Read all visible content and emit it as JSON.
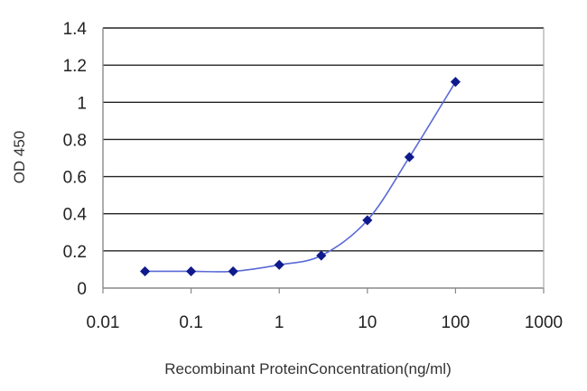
{
  "chart_data": {
    "type": "line",
    "title": "",
    "xlabel": "Recombinant ProteinConcentration(ng/ml)",
    "ylabel": "OD 450",
    "x_scale": "log",
    "xlim": [
      0.01,
      1000
    ],
    "ylim": [
      0,
      1.4
    ],
    "x_ticks": [
      "0.01",
      "0.1",
      "1",
      "10",
      "100",
      "1000"
    ],
    "y_ticks": [
      "0",
      "0.2",
      "0.4",
      "0.6",
      "0.8",
      "1",
      "1.2",
      "1.4"
    ],
    "grid": "horizontal",
    "legend": "none",
    "series": [
      {
        "x": [
          0.03,
          0.1,
          0.3,
          1,
          3,
          10,
          30,
          100
        ],
        "y": [
          0.09,
          0.09,
          0.09,
          0.125,
          0.175,
          0.365,
          0.705,
          1.11
        ]
      }
    ],
    "colors": {
      "series": "#0f1a8c",
      "line": "#5a6ad6",
      "grid": "#222222",
      "axis": "#888888",
      "plot_border": "#aaaaaa"
    }
  }
}
